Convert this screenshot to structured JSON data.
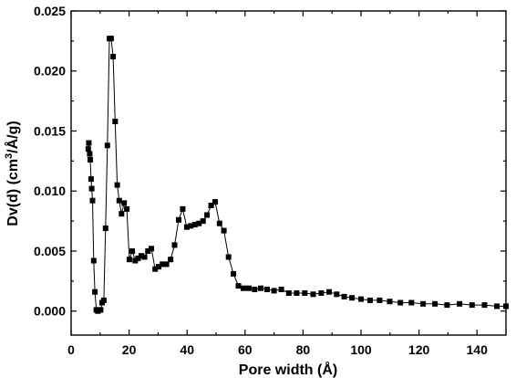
{
  "chart_data": {
    "type": "line",
    "title": "",
    "xlabel": "Pore width (Å)",
    "ylabel_main": "Dv(d) (cm",
    "ylabel_sup": "3",
    "ylabel_rest": "/Å/g)",
    "xlim": [
      0,
      150
    ],
    "ylim": [
      -0.002,
      0.025
    ],
    "xticks": [
      0,
      20,
      40,
      60,
      80,
      100,
      120,
      140
    ],
    "xtick_labels": [
      "0",
      "20",
      "40",
      "60",
      "80",
      "100",
      "120",
      "140"
    ],
    "yticks": [
      0.0,
      0.005,
      0.01,
      0.015,
      0.02,
      0.025
    ],
    "ytick_labels": [
      "0.000",
      "0.005",
      "0.010",
      "0.015",
      "0.020",
      "0.025"
    ],
    "grid": false,
    "marker": "square",
    "color": "#000000",
    "series": [
      {
        "x": [
          5.9,
          6.1,
          6.4,
          6.6,
          6.9,
          7.1,
          7.4,
          7.8,
          8.2,
          8.7,
          9.2,
          9.7,
          10.2,
          10.7,
          11.3,
          11.9,
          12.5,
          13.2,
          13.8,
          14.5,
          15.2,
          15.9,
          16.6,
          17.4,
          18.3,
          19.2,
          20.1,
          21.1,
          22.1,
          23.1,
          24.2,
          25.3,
          26.5,
          27.7,
          29.0,
          30.2,
          31.5,
          32.9,
          34.3,
          35.7,
          37.1,
          38.5,
          39.9,
          41.3,
          42.7,
          44.1,
          45.5,
          46.9,
          48.3,
          49.7,
          51.2,
          52.7,
          54.3,
          56.0,
          57.7,
          59.4,
          61.3,
          63.3,
          65.4,
          67.6,
          70.0,
          72.5,
          75.1,
          77.8,
          80.6,
          83.5,
          86.3,
          89.0,
          91.6,
          94.2,
          96.9,
          100.0,
          103.1,
          106.4,
          109.9,
          113.6,
          117.4,
          121.4,
          125.5,
          129.7,
          134.0,
          138.3,
          142.6,
          146.9,
          150.0
        ],
        "y": [
          0.0135,
          0.014,
          0.0131,
          0.0126,
          0.011,
          0.0102,
          0.0092,
          0.0042,
          0.0016,
          0.0001,
          0.0,
          0.0001,
          0.0001,
          0.0007,
          0.0009,
          0.0069,
          0.0138,
          0.0227,
          0.0227,
          0.0212,
          0.0158,
          0.0105,
          0.0092,
          0.0081,
          0.009,
          0.0085,
          0.0043,
          0.005,
          0.0042,
          0.0044,
          0.0046,
          0.0045,
          0.005,
          0.0052,
          0.0035,
          0.0037,
          0.0039,
          0.0039,
          0.0043,
          0.0055,
          0.0076,
          0.0085,
          0.007,
          0.0071,
          0.0072,
          0.0073,
          0.0075,
          0.008,
          0.0088,
          0.0091,
          0.0073,
          0.0067,
          0.0045,
          0.0031,
          0.0021,
          0.0019,
          0.0019,
          0.0018,
          0.0019,
          0.0018,
          0.0017,
          0.0018,
          0.0015,
          0.0015,
          0.0015,
          0.0014,
          0.0015,
          0.0016,
          0.0014,
          0.0012,
          0.0011,
          0.001,
          0.0009,
          0.0009,
          0.0008,
          0.0007,
          0.0007,
          0.0006,
          0.0006,
          0.0005,
          0.0006,
          0.0005,
          0.0005,
          0.0004,
          0.0004
        ]
      }
    ]
  }
}
